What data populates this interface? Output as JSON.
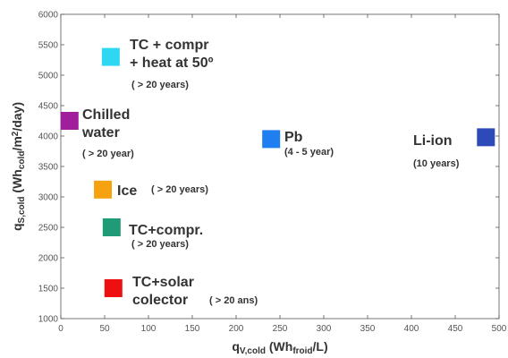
{
  "chart_data": {
    "type": "scatter",
    "xlim": [
      0,
      500
    ],
    "ylim": [
      1000,
      6000
    ],
    "x_ticks": [
      "0",
      "50",
      "100",
      "150",
      "200",
      "250",
      "300",
      "350",
      "400",
      "450",
      "500"
    ],
    "y_ticks": [
      "1000",
      "1500",
      "2000",
      "2500",
      "3000",
      "3500",
      "4000",
      "4500",
      "5000",
      "5500",
      "6000"
    ],
    "grid": false,
    "xlabel": {
      "main": "q",
      "sub": "V,cold",
      "open": " (Wh",
      "sub2": "froid",
      "close": "/L)"
    },
    "ylabel": {
      "main": "q",
      "sub": "S,cold",
      "open": " (Wh",
      "sub2": "cold",
      "mid": "/m",
      "sup": "2",
      "close": "/day)"
    },
    "points": [
      {
        "name": "TC + compr + heat at 50º",
        "x": 57,
        "y": 5300,
        "color": "#2ed8f2",
        "lines": [
          "TC + compr",
          "+ heat at 50º"
        ],
        "note": "( > 20 years)"
      },
      {
        "name": "Chilled water",
        "x": 10,
        "y": 4250,
        "color": "#a01e9c",
        "lines": [
          "Chilled",
          "water"
        ],
        "note": "( > 20 year)"
      },
      {
        "name": "Pb",
        "x": 240,
        "y": 3950,
        "color": "#1f7ef0",
        "lines": [
          "Pb"
        ],
        "note": "(4 - 5 year)"
      },
      {
        "name": "Li-ion",
        "x": 485,
        "y": 3980,
        "color": "#2e4ab8",
        "lines": [
          "Li-ion"
        ],
        "note": "(10 years)"
      },
      {
        "name": "Ice",
        "x": 48,
        "y": 3120,
        "color": "#f6a10f",
        "lines": [
          "Ice"
        ],
        "note": "( > 20 years)"
      },
      {
        "name": "TC+compr.",
        "x": 58,
        "y": 2500,
        "color": "#1f9b78",
        "lines": [
          "TC+compr."
        ],
        "note": "( > 20 years)"
      },
      {
        "name": "TC+solar colector",
        "x": 60,
        "y": 1500,
        "color": "#ee1010",
        "lines": [
          "TC+solar",
          "colector"
        ],
        "note": "( > 20 ans)"
      }
    ]
  }
}
